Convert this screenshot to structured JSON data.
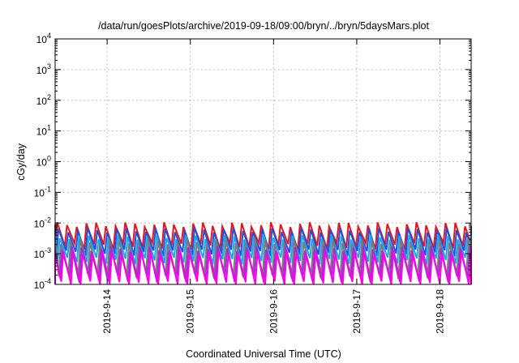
{
  "chart_data": {
    "type": "line",
    "title": "/data/run/goesPlots/archive/2019-09-18/09:00/bryn/../bryn/5daysMars.plot",
    "xlabel": "Coordinated Universal Time (UTC)",
    "ylabel": "cGy/day",
    "y_scale": "log",
    "ylim": [
      "1e-4",
      "1e4"
    ],
    "y_ticks": [
      {
        "base": "10",
        "exp": "-4",
        "value": 0.0001
      },
      {
        "base": "10",
        "exp": "-3",
        "value": 0.001
      },
      {
        "base": "10",
        "exp": "-2",
        "value": 0.01
      },
      {
        "base": "10",
        "exp": "-1",
        "value": 0.1
      },
      {
        "base": "10",
        "exp": "0",
        "value": 1
      },
      {
        "base": "10",
        "exp": "1",
        "value": 10
      },
      {
        "base": "10",
        "exp": "2",
        "value": 100
      },
      {
        "base": "10",
        "exp": "3",
        "value": 1000
      },
      {
        "base": "10",
        "exp": "4",
        "value": 10000
      }
    ],
    "xlim": [
      "2019-09-13 09:00",
      "2019-09-18 09:00"
    ],
    "x_ticks": [
      {
        "label": "2019-9-14",
        "date": "2019-09-14 00:00"
      },
      {
        "label": "2019-9-15",
        "date": "2019-09-15 00:00"
      },
      {
        "label": "2019-9-16",
        "date": "2019-09-16 00:00"
      },
      {
        "label": "2019-9-17",
        "date": "2019-09-17 00:00"
      },
      {
        "label": "2019-9-18",
        "date": "2019-09-18 00:00"
      }
    ],
    "grid": true,
    "sawtooth_period_hours": 2.8,
    "series": [
      {
        "color": "#e8141c",
        "peak": 0.009,
        "trough": 0.0018,
        "phase_hours": 0.0
      },
      {
        "color": "#1f4fe0",
        "peak": 0.006,
        "trough": 0.0011,
        "phase_hours": 0.35
      },
      {
        "color": "#18a8e8",
        "peak": 0.0035,
        "trough": 0.0006,
        "phase_hours": 0.7
      },
      {
        "color": "#7a7a7a",
        "peak": 0.0025,
        "trough": 0.0002,
        "phase_hours": 1.05
      },
      {
        "color": "#9b30d0",
        "peak": 0.0015,
        "trough": 0.00015,
        "phase_hours": 1.4
      },
      {
        "color": "#ff00e6",
        "peak": 0.0011,
        "trough": 0.0001,
        "phase_hours": 1.75
      }
    ]
  }
}
